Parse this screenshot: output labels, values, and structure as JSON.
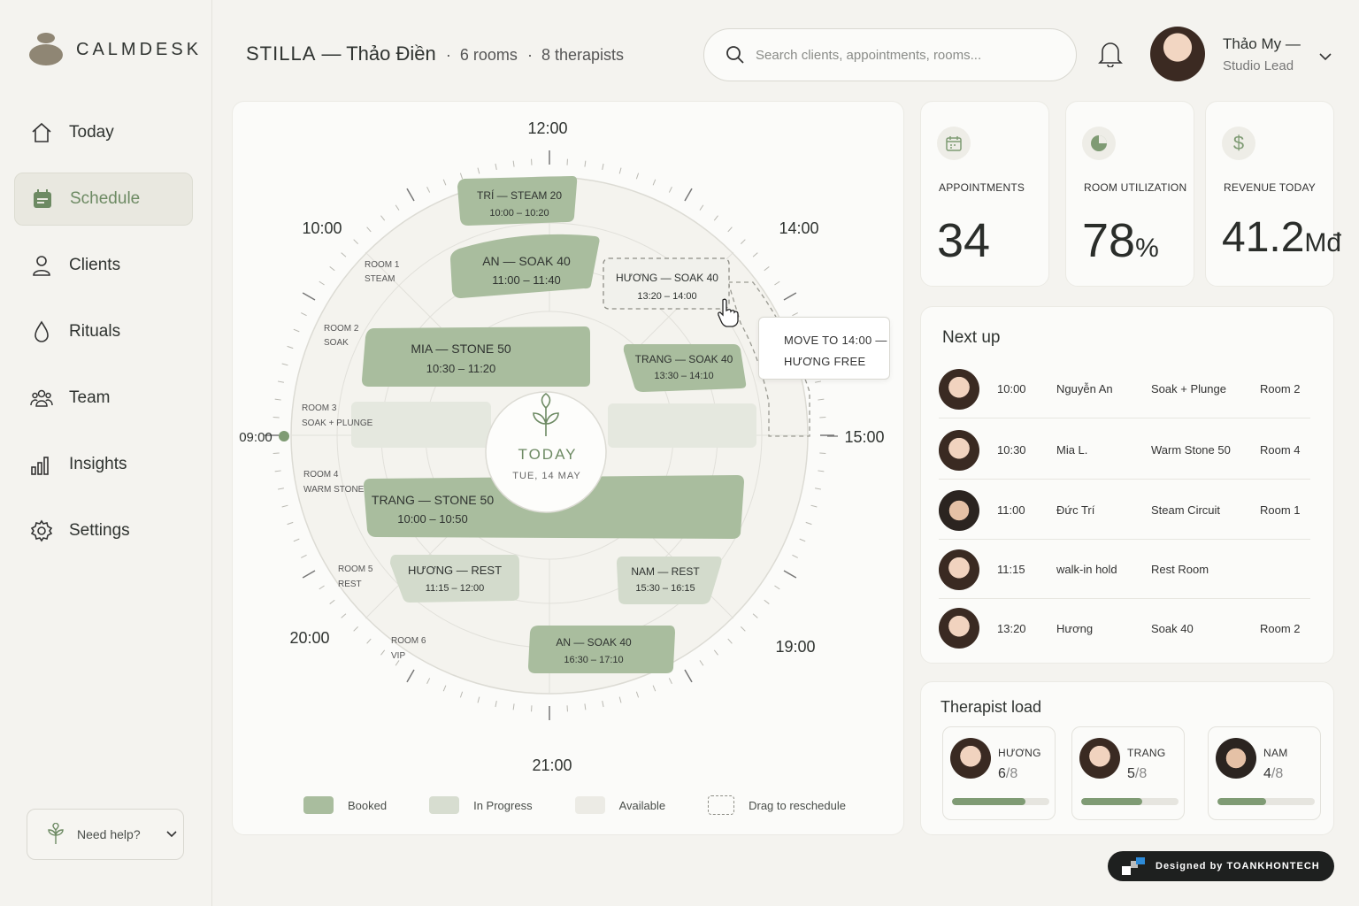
{
  "app": {
    "logo_text": "CALMDESK"
  },
  "sidebar": {
    "items": [
      {
        "label": "Today",
        "icon": "home-icon"
      },
      {
        "label": "Schedule",
        "icon": "calendar-icon",
        "active": true
      },
      {
        "label": "Clients",
        "icon": "user-icon"
      },
      {
        "label": "Rituals",
        "icon": "drop-icon"
      },
      {
        "label": "Team",
        "icon": "team-icon"
      },
      {
        "label": "Insights",
        "icon": "bar-chart-icon"
      },
      {
        "label": "Settings",
        "icon": "gear-icon"
      }
    ],
    "help_label": "Need help?"
  },
  "header": {
    "brand": "STILLA",
    "location": "— Thảo Điền",
    "rooms": "6 rooms",
    "therapists": "8 therapists",
    "search_placeholder": "Search clients, appointments, rooms...",
    "user_name": "Thảo My —",
    "user_role": "Studio Lead"
  },
  "schedule": {
    "time_labels": [
      "12:00",
      "14:00",
      "15:00",
      "19:00",
      "21:00",
      "20:00",
      "09:00",
      "10:00"
    ],
    "center_title": "TODAY",
    "center_date": "TUE, 14 MAY",
    "rooms": [
      {
        "name": "ROOM 1",
        "type": "STEAM"
      },
      {
        "name": "ROOM 2",
        "type": "SOAK"
      },
      {
        "name": "ROOM 3",
        "type": "SOAK + PLUNGE"
      },
      {
        "name": "ROOM 4",
        "type": "WARM STONE"
      },
      {
        "name": "ROOM 5",
        "type": "REST"
      },
      {
        "name": "ROOM 6",
        "type": "VIP"
      }
    ],
    "appointments": [
      {
        "title": "TRÍ — STEAM 20",
        "time": "10:00 – 10:20"
      },
      {
        "title": "AN — SOAK 40",
        "time": "11:00 – 11:40"
      },
      {
        "title": "HƯƠNG — SOAK 40",
        "time": "13:20 – 14:00"
      },
      {
        "title": "MIA — STONE 50",
        "time": "10:30 – 11:20"
      },
      {
        "title": "TRANG — SOAK 40",
        "time": "13:30 – 14:10"
      },
      {
        "title": "TRANG — STONE 50",
        "time": "10:00 – 10:50"
      },
      {
        "title": "HƯƠNG — REST",
        "time": "11:15 – 12:00"
      },
      {
        "title": "NAM — REST",
        "time": "15:30 – 16:15"
      },
      {
        "title": "AN — SOAK 40",
        "time": "16:30 – 17:10"
      }
    ],
    "tooltip_line1": "MOVE TO 14:00 —",
    "tooltip_line2": "HƯƠNG FREE",
    "legend": [
      {
        "label": "Booked",
        "color": "#a9bd9e"
      },
      {
        "label": "In Progress",
        "color": "#d7ddd0"
      },
      {
        "label": "Available",
        "color": "#ecebe5"
      },
      {
        "label": "Drag to reschedule",
        "color": "dashed"
      }
    ]
  },
  "stats": [
    {
      "label": "APPOINTMENTS",
      "value": "34",
      "unit": "",
      "icon": "calendar-icon"
    },
    {
      "label": "ROOM UTILIZATION",
      "value": "78",
      "unit": "%",
      "icon": "pie-icon"
    },
    {
      "label": "REVENUE TODAY",
      "value": "41.2",
      "unit": "Mđ",
      "icon": "dollar-icon"
    }
  ],
  "next_up": {
    "title": "Next up",
    "rows": [
      {
        "time": "10:00",
        "name": "Nguyễn An",
        "service": "Soak + Plunge",
        "room": "Room 2",
        "avatar": "f"
      },
      {
        "time": "10:30",
        "name": "Mia L.",
        "service": "Warm Stone 50",
        "room": "Room 4",
        "avatar": "f"
      },
      {
        "time": "11:00",
        "name": "Đức Trí",
        "service": "Steam Circuit",
        "room": "Room 1",
        "avatar": "m"
      },
      {
        "time": "11:15",
        "name": "walk-in hold",
        "service": "Rest Room",
        "room": "",
        "avatar": "f"
      },
      {
        "time": "13:20",
        "name": "Hương",
        "service": "Soak 40",
        "room": "Room 2",
        "avatar": "f"
      }
    ]
  },
  "therapist_load": {
    "title": "Therapist load",
    "items": [
      {
        "name": "HƯƠNG",
        "load": "6",
        "total": "/8",
        "fraction": 0.75,
        "avatar": "f"
      },
      {
        "name": "TRANG",
        "load": "5",
        "total": "/8",
        "fraction": 0.625,
        "avatar": "f"
      },
      {
        "name": "NAM",
        "load": "4",
        "total": "/8",
        "fraction": 0.5,
        "avatar": "m"
      }
    ]
  },
  "credit": "Designed by TOANKHONTECH"
}
